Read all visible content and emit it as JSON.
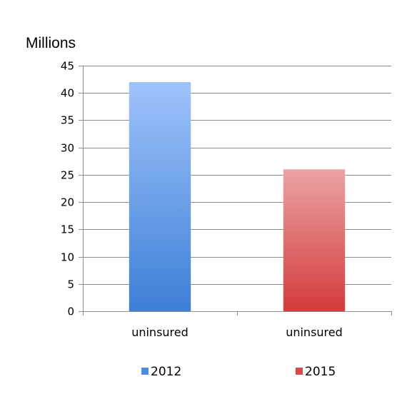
{
  "chart_data": {
    "type": "bar",
    "title": "",
    "xlabel": "",
    "ylabel": "Millions",
    "ylim": [
      0,
      45
    ],
    "ytick_step": 5,
    "categories": [
      "uninsured",
      "uninsured"
    ],
    "series": [
      {
        "name": "2012",
        "values": [
          42,
          null
        ]
      },
      {
        "name": "2015",
        "values": [
          null,
          26
        ]
      }
    ],
    "colors": {
      "2012": {
        "top": "#9fc3fb",
        "bottom": "#3d7fd6",
        "legend": "#4d8ee0"
      },
      "2015": {
        "top": "#eba3a3",
        "bottom": "#d33b3b",
        "legend": "#d94848"
      }
    },
    "grid": true,
    "legend_position": "bottom"
  }
}
